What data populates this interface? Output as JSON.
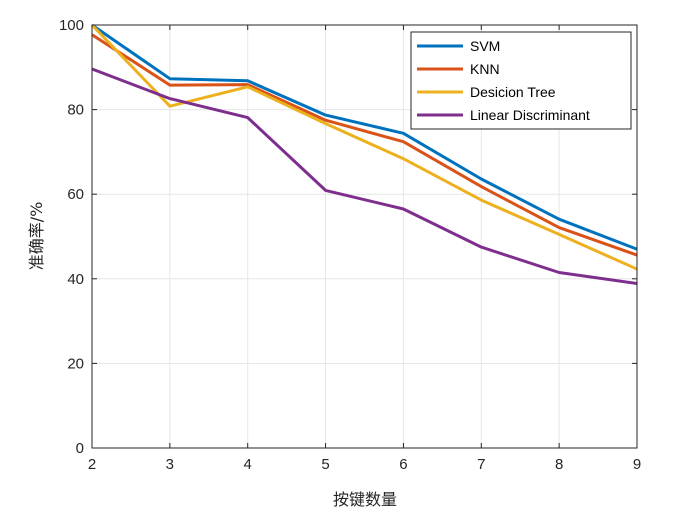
{
  "chart_data": {
    "type": "line",
    "title": "",
    "xlabel": "按键数量",
    "ylabel": "准确率/%",
    "x": [
      2,
      3,
      4,
      5,
      6,
      7,
      8,
      9
    ],
    "xlim": [
      2,
      9
    ],
    "ylim": [
      0,
      100
    ],
    "x_ticks": [
      "2",
      "3",
      "4",
      "5",
      "6",
      "7",
      "8",
      "9"
    ],
    "y_ticks": [
      "0",
      "20",
      "40",
      "60",
      "80",
      "100"
    ],
    "grid": true,
    "legend_position": "top-right",
    "series": [
      {
        "name": "SVM",
        "color": "#0072BD",
        "values": [
          100,
          87.3,
          86.8,
          78.7,
          74.4,
          63.6,
          54.1,
          47.0
        ]
      },
      {
        "name": "KNN",
        "color": "#D95319",
        "values": [
          97.7,
          85.8,
          85.9,
          77.5,
          72.4,
          61.8,
          52.1,
          45.6
        ]
      },
      {
        "name": "Desicion Tree",
        "color": "#EDB120",
        "values": [
          100,
          80.8,
          85.4,
          76.7,
          68.4,
          58.6,
          50.5,
          42.3
        ]
      },
      {
        "name": "Linear Discriminant",
        "color": "#7E2F8E",
        "values": [
          89.6,
          82.6,
          78.1,
          60.9,
          56.5,
          47.5,
          41.5,
          38.9
        ]
      }
    ]
  }
}
